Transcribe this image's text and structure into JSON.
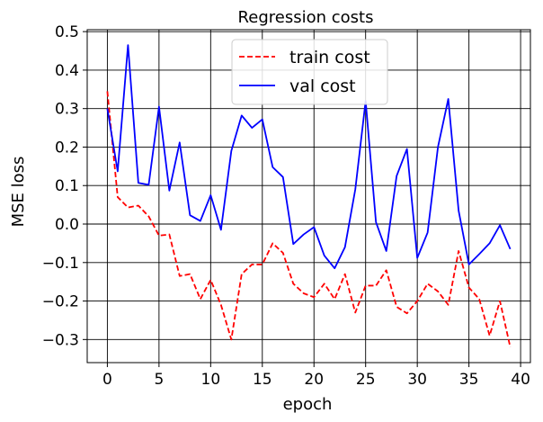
{
  "chart_data": {
    "type": "line",
    "title": "Regression costs",
    "xlabel": "epoch",
    "ylabel": "MSE loss",
    "xlim": [
      -1.95,
      40.95
    ],
    "ylim": [
      -0.36,
      0.505
    ],
    "xticks": [
      0,
      5,
      10,
      15,
      20,
      25,
      30,
      35,
      40
    ],
    "yticks": [
      -0.3,
      -0.2,
      -0.1,
      0.0,
      0.1,
      0.2,
      0.3,
      0.4,
      0.5
    ],
    "xtick_labels": [
      "0",
      "5",
      "10",
      "15",
      "20",
      "25",
      "30",
      "35",
      "40"
    ],
    "ytick_labels": [
      "−0.3",
      "−0.2",
      "−0.1",
      "0.0",
      "0.1",
      "0.2",
      "0.3",
      "0.4",
      "0.5"
    ],
    "grid": true,
    "legend_position": "top-center",
    "series": [
      {
        "name": "train cost",
        "color": "#ff0000",
        "style": "dashed",
        "x": [
          0,
          1,
          2,
          3,
          4,
          5,
          6,
          7,
          8,
          9,
          10,
          11,
          12,
          13,
          14,
          15,
          16,
          17,
          18,
          19,
          20,
          21,
          22,
          23,
          24,
          25,
          26,
          27,
          28,
          29,
          30,
          31,
          32,
          33,
          34,
          35,
          36,
          37,
          38,
          39
        ],
        "y": [
          0.345,
          0.07,
          0.043,
          0.048,
          0.02,
          -0.03,
          -0.027,
          -0.135,
          -0.13,
          -0.195,
          -0.145,
          -0.21,
          -0.3,
          -0.13,
          -0.105,
          -0.105,
          -0.05,
          -0.075,
          -0.155,
          -0.18,
          -0.19,
          -0.155,
          -0.195,
          -0.13,
          -0.23,
          -0.16,
          -0.16,
          -0.12,
          -0.215,
          -0.232,
          -0.2,
          -0.155,
          -0.175,
          -0.21,
          -0.07,
          -0.165,
          -0.195,
          -0.29,
          -0.2,
          -0.32
        ]
      },
      {
        "name": "val cost",
        "color": "#0000ff",
        "style": "solid",
        "x": [
          0,
          1,
          2,
          3,
          4,
          5,
          6,
          7,
          8,
          9,
          10,
          11,
          12,
          13,
          14,
          15,
          16,
          17,
          18,
          19,
          20,
          21,
          22,
          23,
          24,
          25,
          26,
          27,
          28,
          29,
          30,
          31,
          32,
          33,
          34,
          35,
          36,
          37,
          38,
          39
        ],
        "y": [
          0.3,
          0.137,
          0.465,
          0.107,
          0.102,
          0.305,
          0.087,
          0.212,
          0.023,
          0.008,
          0.075,
          -0.015,
          0.19,
          0.282,
          0.25,
          0.272,
          0.148,
          0.122,
          -0.052,
          -0.027,
          -0.008,
          -0.082,
          -0.115,
          -0.06,
          0.09,
          0.32,
          0.005,
          -0.07,
          0.125,
          0.195,
          -0.088,
          -0.022,
          0.2,
          0.325,
          0.035,
          -0.105,
          -0.078,
          -0.05,
          -0.003,
          -0.065
        ]
      }
    ]
  }
}
